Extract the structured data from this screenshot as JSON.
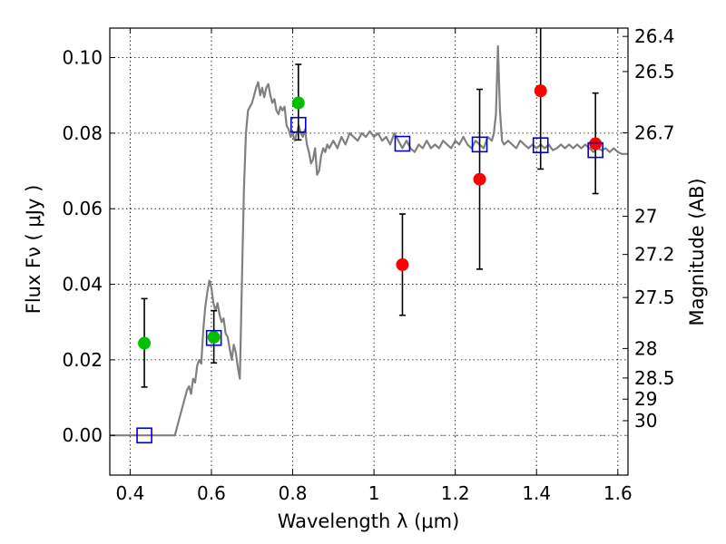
{
  "chart_data": {
    "type": "scatter",
    "xlabel": "Wavelength  λ (μm)",
    "ylabel": "Flux  Fν  ( μJy )",
    "ylabel_right": "Magnitude (AB)",
    "xlim": [
      0.35,
      1.625
    ],
    "ylim": [
      -0.0105,
      0.1078
    ],
    "grid": true,
    "legend": "none",
    "x_ticks": [
      0.4,
      0.6,
      0.8,
      1.0,
      1.2,
      1.4,
      1.6
    ],
    "x_tick_labels": [
      "0.4",
      "0.6",
      "0.8",
      "1",
      "1.2",
      "1.4",
      "1.6"
    ],
    "y_ticks": [
      0.0,
      0.02,
      0.04,
      0.06,
      0.08,
      0.1
    ],
    "y_tick_labels": [
      "0.00",
      "0.02",
      "0.04",
      "0.06",
      "0.08",
      "0.10"
    ],
    "mag_ticks": [
      {
        "label": "26.4",
        "flux": 0.1056
      },
      {
        "label": "26.5",
        "flux": 0.0963
      },
      {
        "label": "26.7",
        "flux": 0.0801
      },
      {
        "label": "27",
        "flux": 0.058
      },
      {
        "label": "27.2",
        "flux": 0.0479
      },
      {
        "label": "27.5",
        "flux": 0.0365
      },
      {
        "label": "28",
        "flux": 0.023
      },
      {
        "label": "28.5",
        "flux": 0.0152
      },
      {
        "label": "29",
        "flux": 0.0096
      },
      {
        "label": "30",
        "flux": 0.0039
      }
    ],
    "colors": {
      "spectrum": "#808080",
      "detection": "#00c000",
      "nondetection": "#ff0000",
      "model": "#0000cc",
      "errorbar": "#000000",
      "zero_line": "#606060"
    },
    "series": [
      {
        "role": "detection",
        "marker": "circle",
        "points": [
          {
            "x": 0.435,
            "y": 0.0244,
            "yerr_low": 0.0128,
            "yerr_high": 0.0362
          },
          {
            "x": 0.606,
            "y": 0.026,
            "yerr_low": 0.0192,
            "yerr_high": 0.033
          },
          {
            "x": 0.814,
            "y": 0.088,
            "yerr_low": 0.0782,
            "yerr_high": 0.0982
          }
        ]
      },
      {
        "role": "nondetection",
        "marker": "circle",
        "points": [
          {
            "x": 1.07,
            "y": 0.0452,
            "yerr_low": 0.0318,
            "yerr_high": 0.0586
          },
          {
            "x": 1.26,
            "y": 0.0678,
            "yerr_low": 0.044,
            "yerr_high": 0.0916
          },
          {
            "x": 1.41,
            "y": 0.0912,
            "yerr_low": 0.0705,
            "yerr_high": 0.1078
          },
          {
            "x": 1.545,
            "y": 0.0772,
            "yerr_low": 0.064,
            "yerr_high": 0.0906
          }
        ]
      },
      {
        "role": "model",
        "marker": "square",
        "points": [
          {
            "x": 0.435,
            "y": 0.0
          },
          {
            "x": 0.606,
            "y": 0.0258
          },
          {
            "x": 0.814,
            "y": 0.0822
          },
          {
            "x": 1.07,
            "y": 0.0772
          },
          {
            "x": 1.26,
            "y": 0.077
          },
          {
            "x": 1.41,
            "y": 0.0768
          },
          {
            "x": 1.545,
            "y": 0.0755
          }
        ]
      },
      {
        "role": "spectrum",
        "marker": "line",
        "points": [
          [
            0.35,
            0.0
          ],
          [
            0.5,
            0.0
          ],
          [
            0.51,
            0.0
          ],
          [
            0.52,
            0.004
          ],
          [
            0.53,
            0.008
          ],
          [
            0.54,
            0.012
          ],
          [
            0.545,
            0.013
          ],
          [
            0.55,
            0.011
          ],
          [
            0.555,
            0.015
          ],
          [
            0.56,
            0.014
          ],
          [
            0.565,
            0.0185
          ],
          [
            0.57,
            0.02
          ],
          [
            0.575,
            0.019
          ],
          [
            0.58,
            0.028
          ],
          [
            0.585,
            0.034
          ],
          [
            0.59,
            0.038
          ],
          [
            0.595,
            0.041
          ],
          [
            0.6,
            0.039
          ],
          [
            0.605,
            0.035
          ],
          [
            0.61,
            0.033
          ],
          [
            0.615,
            0.035
          ],
          [
            0.62,
            0.032
          ],
          [
            0.625,
            0.03
          ],
          [
            0.63,
            0.031
          ],
          [
            0.635,
            0.027
          ],
          [
            0.64,
            0.026
          ],
          [
            0.645,
            0.023
          ],
          [
            0.65,
            0.02
          ],
          [
            0.655,
            0.024
          ],
          [
            0.66,
            0.022
          ],
          [
            0.665,
            0.018
          ],
          [
            0.67,
            0.015
          ],
          [
            0.675,
            0.04
          ],
          [
            0.68,
            0.065
          ],
          [
            0.685,
            0.08
          ],
          [
            0.69,
            0.086
          ],
          [
            0.695,
            0.087
          ],
          [
            0.7,
            0.088
          ],
          [
            0.705,
            0.09
          ],
          [
            0.71,
            0.092
          ],
          [
            0.715,
            0.0935
          ],
          [
            0.72,
            0.09
          ],
          [
            0.725,
            0.092
          ],
          [
            0.73,
            0.0895
          ],
          [
            0.735,
            0.092
          ],
          [
            0.74,
            0.093
          ],
          [
            0.745,
            0.09
          ],
          [
            0.75,
            0.088
          ],
          [
            0.755,
            0.089
          ],
          [
            0.76,
            0.086
          ],
          [
            0.765,
            0.085
          ],
          [
            0.77,
            0.087
          ],
          [
            0.775,
            0.086
          ],
          [
            0.78,
            0.087
          ],
          [
            0.785,
            0.082
          ],
          [
            0.79,
            0.081
          ],
          [
            0.795,
            0.079
          ],
          [
            0.8,
            0.08
          ],
          [
            0.805,
            0.078
          ],
          [
            0.81,
            0.08
          ],
          [
            0.815,
            0.082
          ],
          [
            0.82,
            0.08
          ],
          [
            0.825,
            0.079
          ],
          [
            0.83,
            0.081
          ],
          [
            0.835,
            0.077
          ],
          [
            0.84,
            0.075
          ],
          [
            0.845,
            0.072
          ],
          [
            0.85,
            0.073
          ],
          [
            0.855,
            0.076
          ],
          [
            0.86,
            0.069
          ],
          [
            0.865,
            0.07
          ],
          [
            0.87,
            0.074
          ],
          [
            0.875,
            0.076
          ],
          [
            0.88,
            0.075
          ],
          [
            0.885,
            0.077
          ],
          [
            0.89,
            0.076
          ],
          [
            0.9,
            0.078
          ],
          [
            0.91,
            0.076
          ],
          [
            0.92,
            0.079
          ],
          [
            0.93,
            0.077
          ],
          [
            0.94,
            0.08
          ],
          [
            0.95,
            0.079
          ],
          [
            0.96,
            0.078
          ],
          [
            0.97,
            0.08
          ],
          [
            0.98,
            0.079
          ],
          [
            0.99,
            0.0805
          ],
          [
            1.0,
            0.079
          ],
          [
            1.01,
            0.08
          ],
          [
            1.02,
            0.078
          ],
          [
            1.03,
            0.079
          ],
          [
            1.04,
            0.077
          ],
          [
            1.05,
            0.08
          ],
          [
            1.06,
            0.078
          ],
          [
            1.07,
            0.076
          ],
          [
            1.08,
            0.078
          ],
          [
            1.09,
            0.076
          ],
          [
            1.1,
            0.075
          ],
          [
            1.11,
            0.077
          ],
          [
            1.12,
            0.076
          ],
          [
            1.13,
            0.078
          ],
          [
            1.14,
            0.076
          ],
          [
            1.15,
            0.077
          ],
          [
            1.16,
            0.076
          ],
          [
            1.17,
            0.078
          ],
          [
            1.18,
            0.077
          ],
          [
            1.19,
            0.076
          ],
          [
            1.2,
            0.078
          ],
          [
            1.21,
            0.077
          ],
          [
            1.22,
            0.079
          ],
          [
            1.23,
            0.077
          ],
          [
            1.24,
            0.076
          ],
          [
            1.25,
            0.078
          ],
          [
            1.26,
            0.077
          ],
          [
            1.27,
            0.076
          ],
          [
            1.28,
            0.079
          ],
          [
            1.29,
            0.078
          ],
          [
            1.295,
            0.08
          ],
          [
            1.3,
            0.085
          ],
          [
            1.305,
            0.103
          ],
          [
            1.31,
            0.086
          ],
          [
            1.315,
            0.078
          ],
          [
            1.32,
            0.077
          ],
          [
            1.33,
            0.078
          ],
          [
            1.34,
            0.077
          ],
          [
            1.35,
            0.076
          ],
          [
            1.36,
            0.078
          ],
          [
            1.37,
            0.077
          ],
          [
            1.38,
            0.076
          ],
          [
            1.39,
            0.077
          ],
          [
            1.4,
            0.076
          ],
          [
            1.41,
            0.077
          ],
          [
            1.42,
            0.076
          ],
          [
            1.43,
            0.077
          ],
          [
            1.44,
            0.0755
          ],
          [
            1.45,
            0.076
          ],
          [
            1.46,
            0.077
          ],
          [
            1.47,
            0.076
          ],
          [
            1.48,
            0.077
          ],
          [
            1.49,
            0.076
          ],
          [
            1.5,
            0.077
          ],
          [
            1.51,
            0.076
          ],
          [
            1.52,
            0.077
          ],
          [
            1.53,
            0.076
          ],
          [
            1.54,
            0.075
          ],
          [
            1.55,
            0.076
          ],
          [
            1.56,
            0.0755
          ],
          [
            1.57,
            0.076
          ],
          [
            1.58,
            0.075
          ],
          [
            1.59,
            0.076
          ],
          [
            1.6,
            0.075
          ],
          [
            1.61,
            0.0745
          ],
          [
            1.625,
            0.0745
          ]
        ]
      }
    ]
  }
}
